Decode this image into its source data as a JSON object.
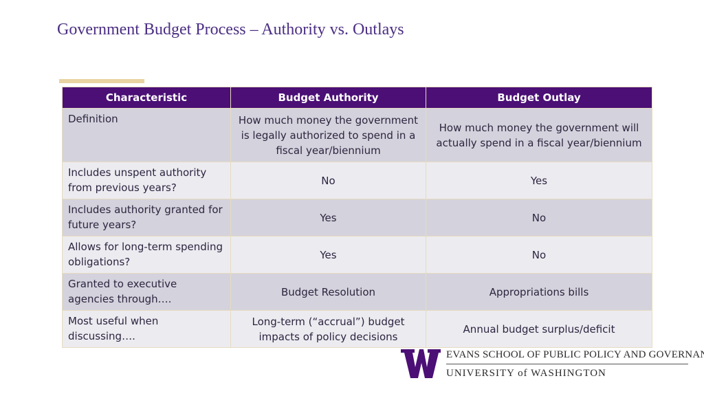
{
  "title": "Government Budget Process – Authority vs. Outlays",
  "table": {
    "headers": [
      "Characteristic",
      "Budget Authority",
      "Budget Outlay"
    ],
    "rows": [
      [
        "Definition",
        "How much money the government is legally authorized to spend in a fiscal year/biennium",
        "How much money the government will actually spend in a fiscal year/biennium"
      ],
      [
        "Includes unspent authority from previous years?",
        "No",
        "Yes"
      ],
      [
        "Includes authority granted for future years?",
        "Yes",
        "No"
      ],
      [
        "Allows for long-term spending obligations?",
        "Yes",
        "No"
      ],
      [
        "Granted to executive agencies through….",
        "Budget Resolution",
        "Appropriations bills"
      ],
      [
        "Most useful when discussing….",
        "Long-term (“accrual”) budget impacts of policy decisions",
        "Annual budget surplus/deficit"
      ]
    ]
  },
  "logo": {
    "icon": "uw-w-logo-icon",
    "school": "EVANS SCHOOL OF PUBLIC POLICY AND GOVERNANCE",
    "university": "UNIVERSITY of WASHINGTON"
  },
  "colors": {
    "title": "#4b2e83",
    "header_bg": "#4b0f75",
    "accent_gold": "#e8d3a2",
    "row_dark": "#d4d2dc",
    "row_light": "#ecebf0"
  }
}
